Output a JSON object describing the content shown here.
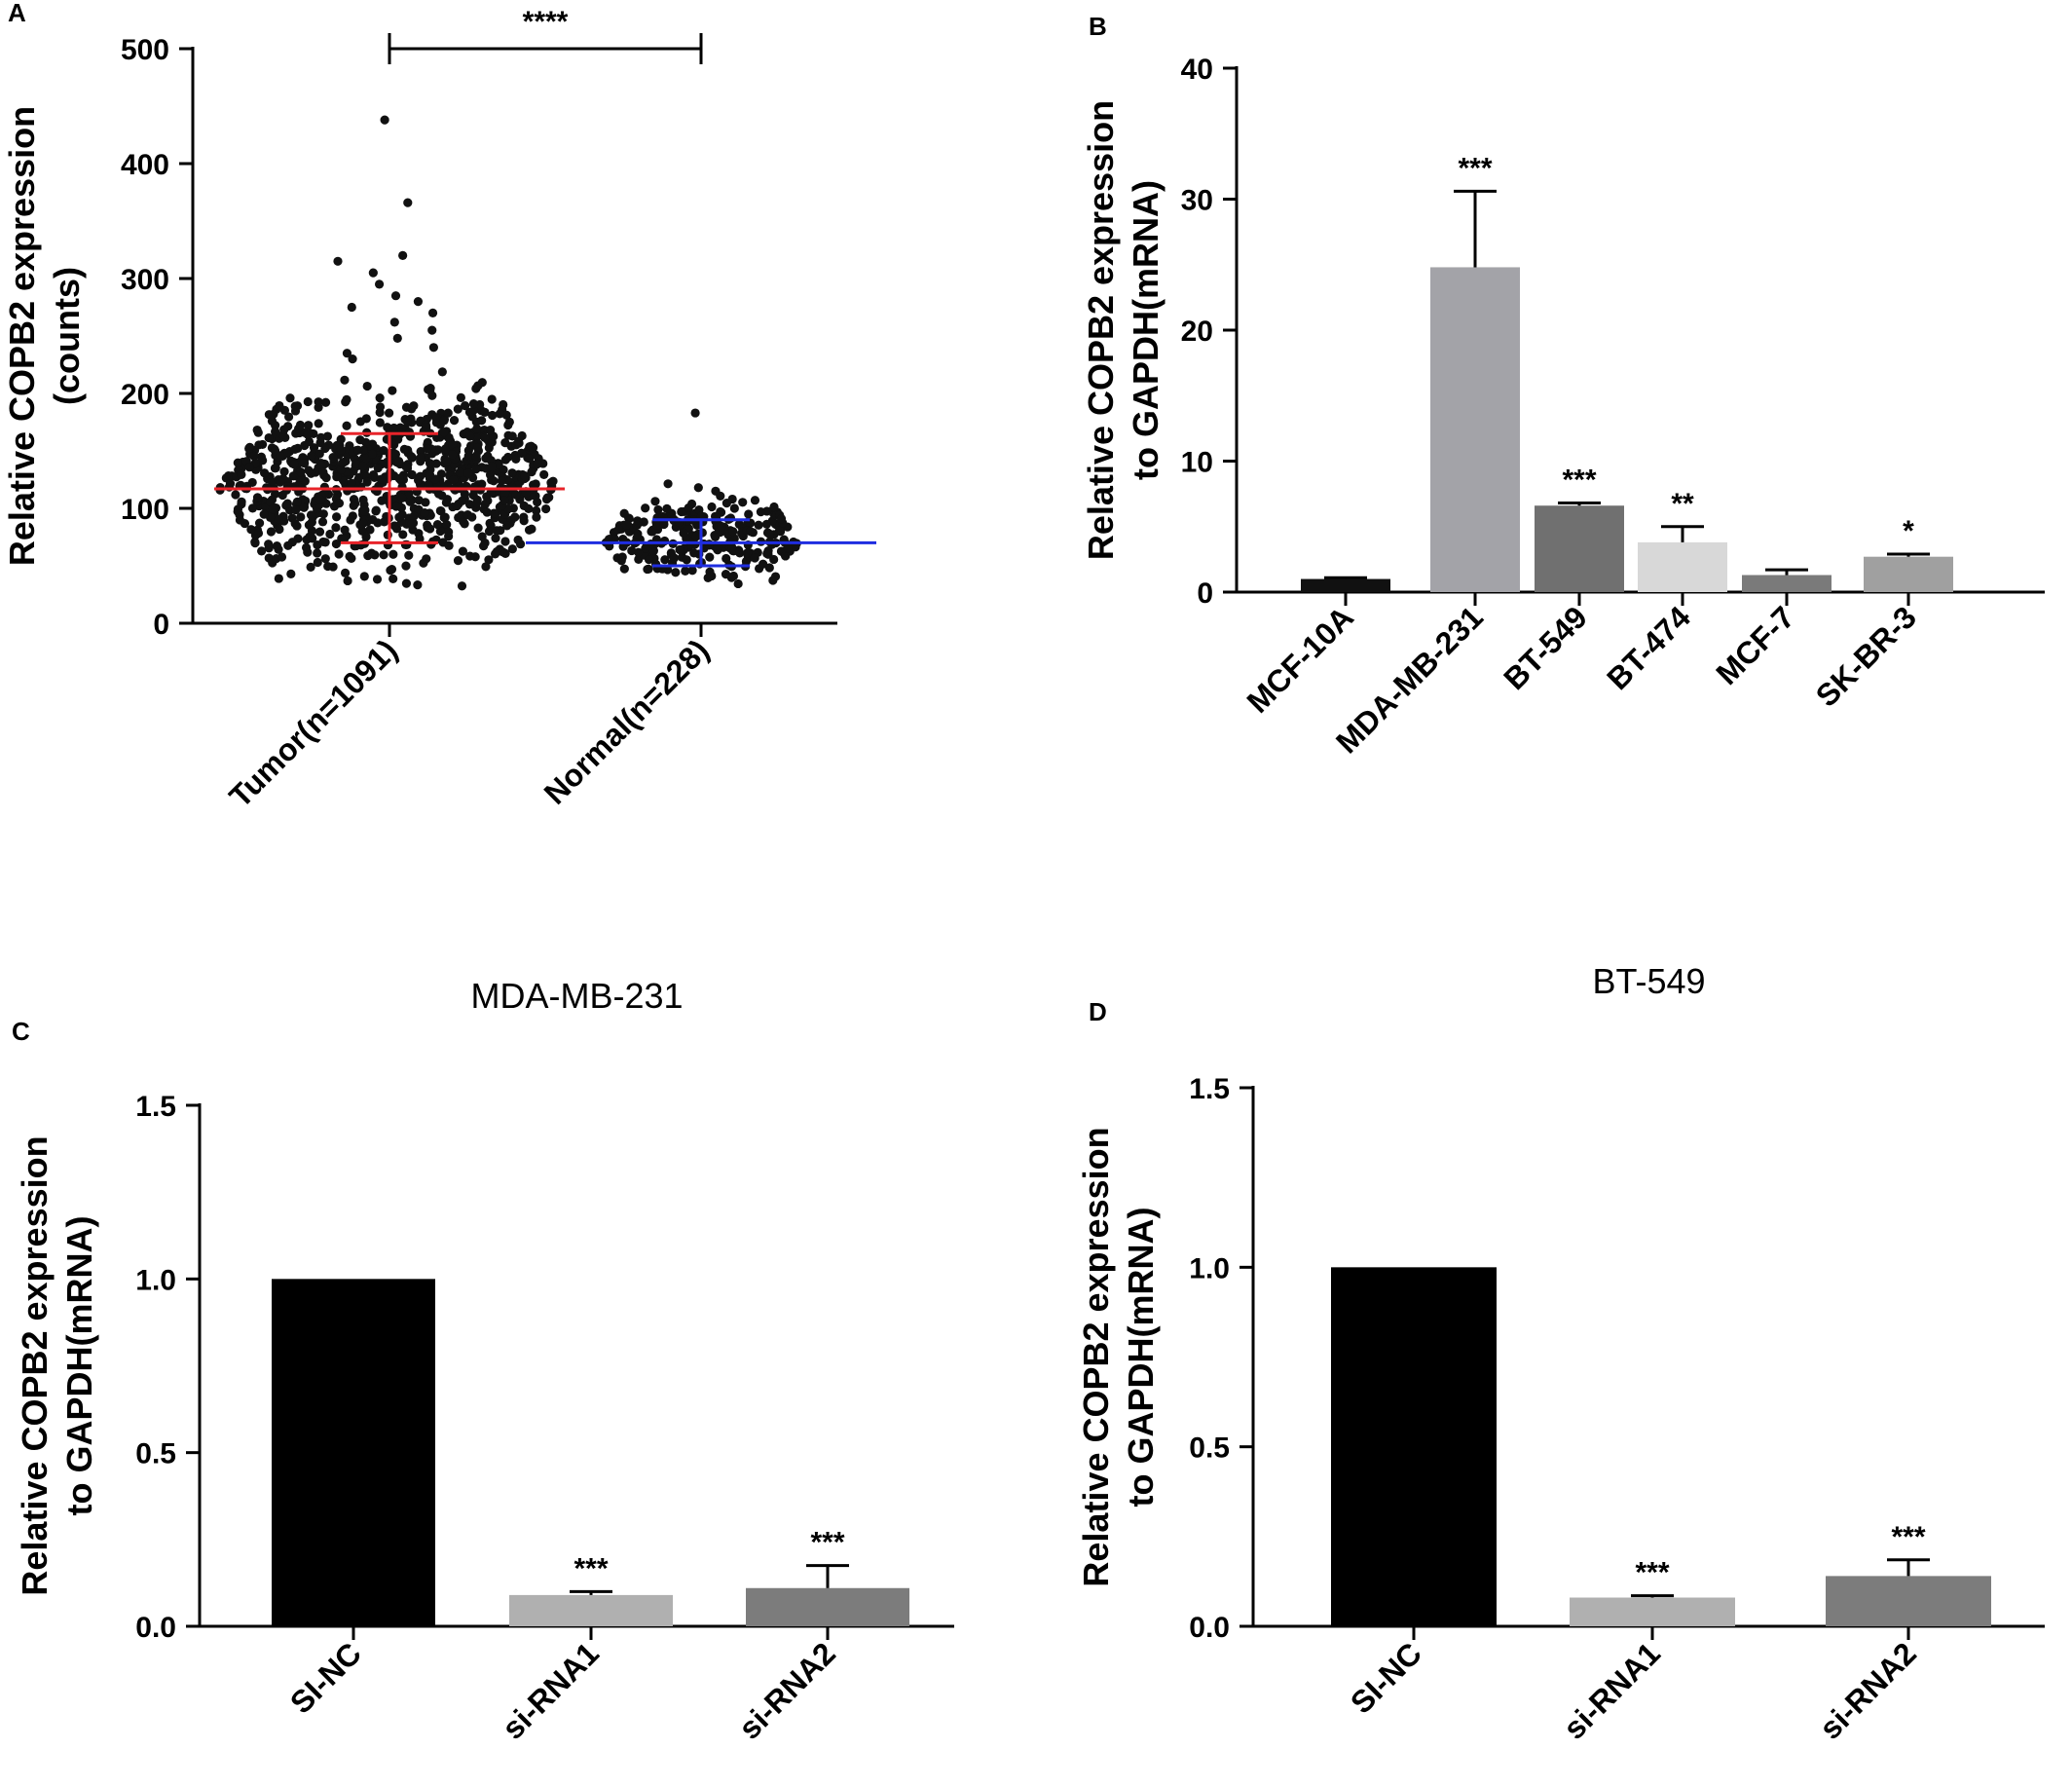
{
  "chart_data": [
    {
      "panel": "A",
      "type": "scatter",
      "title": "",
      "ylabel_lines": [
        "Relative COPB2 expression",
        "(counts)"
      ],
      "ylim": [
        0,
        500
      ],
      "yticks": [
        0,
        100,
        200,
        300,
        400,
        500
      ],
      "categories": [
        "Tumor(n=1091)",
        "Normal(n=228)"
      ],
      "summary": [
        {
          "category": "Tumor(n=1091)",
          "mean": 117,
          "sd_low": 70,
          "sd_high": 165,
          "min": 15,
          "max": 438,
          "color": "#e8242a",
          "outliers": [
            438,
            366,
            320,
            315,
            305,
            295,
            285,
            280,
            275,
            270,
            262,
            255,
            248,
            240,
            235,
            230
          ]
        },
        {
          "category": "Normal(n=228)",
          "mean": 70,
          "sd_low": 50,
          "sd_high": 90,
          "min": 18,
          "max": 183,
          "color": "#1f2de0",
          "outliers": [
            183,
            118,
            115,
            108,
            100
          ]
        }
      ],
      "significance": "****"
    },
    {
      "panel": "B",
      "type": "bar",
      "title": "",
      "ylabel_lines": [
        "Relative COPB2 expression",
        "to GAPDH(mRNA)"
      ],
      "ylim": [
        0,
        40
      ],
      "yticks": [
        0,
        10,
        20,
        30,
        40
      ],
      "categories": [
        "MCF-10A",
        "MDA-MB-231",
        "BT-549",
        "BT-474",
        "MCF-7",
        "SK-BR-3"
      ],
      "values": [
        1.0,
        24.8,
        6.6,
        3.8,
        1.3,
        2.7
      ],
      "errors": [
        0.1,
        5.8,
        0.2,
        1.2,
        0.4,
        0.2
      ],
      "significance": [
        "",
        "***",
        "***",
        "**",
        "",
        "*"
      ],
      "colors": [
        "#111111",
        "#a3a3a8",
        "#707070",
        "#d8d8d8",
        "#7a7a7a",
        "#a0a0a0"
      ]
    },
    {
      "panel": "C",
      "type": "bar",
      "title": "MDA-MB-231",
      "ylabel_lines": [
        "Relative COPB2 expression",
        "to GAPDH(mRNA)"
      ],
      "ylim": [
        0,
        1.5
      ],
      "yticks": [
        "0.0",
        "0.5",
        "1.0",
        "1.5"
      ],
      "categories": [
        "SI-NC",
        "si-RNA1",
        "si-RNA2"
      ],
      "values": [
        1.0,
        0.09,
        0.11
      ],
      "errors": [
        0.0,
        0.01,
        0.065
      ],
      "significance": [
        "",
        "***",
        "***"
      ],
      "colors": [
        "#000000",
        "#b0b0b0",
        "#7c7c7c"
      ]
    },
    {
      "panel": "D",
      "type": "bar",
      "title": "BT-549",
      "ylabel_lines": [
        "Relative COPB2 expression",
        "to GAPDH(mRNA)"
      ],
      "ylim": [
        0,
        1.5
      ],
      "yticks": [
        "0.0",
        "0.5",
        "1.0",
        "1.5"
      ],
      "categories": [
        "SI-NC",
        "si-RNA1",
        "si-RNA2"
      ],
      "values": [
        1.0,
        0.08,
        0.14
      ],
      "errors": [
        0.0,
        0.005,
        0.045
      ],
      "significance": [
        "",
        "***",
        "***"
      ],
      "colors": [
        "#000000",
        "#b0b0b0",
        "#7c7c7c"
      ]
    }
  ]
}
